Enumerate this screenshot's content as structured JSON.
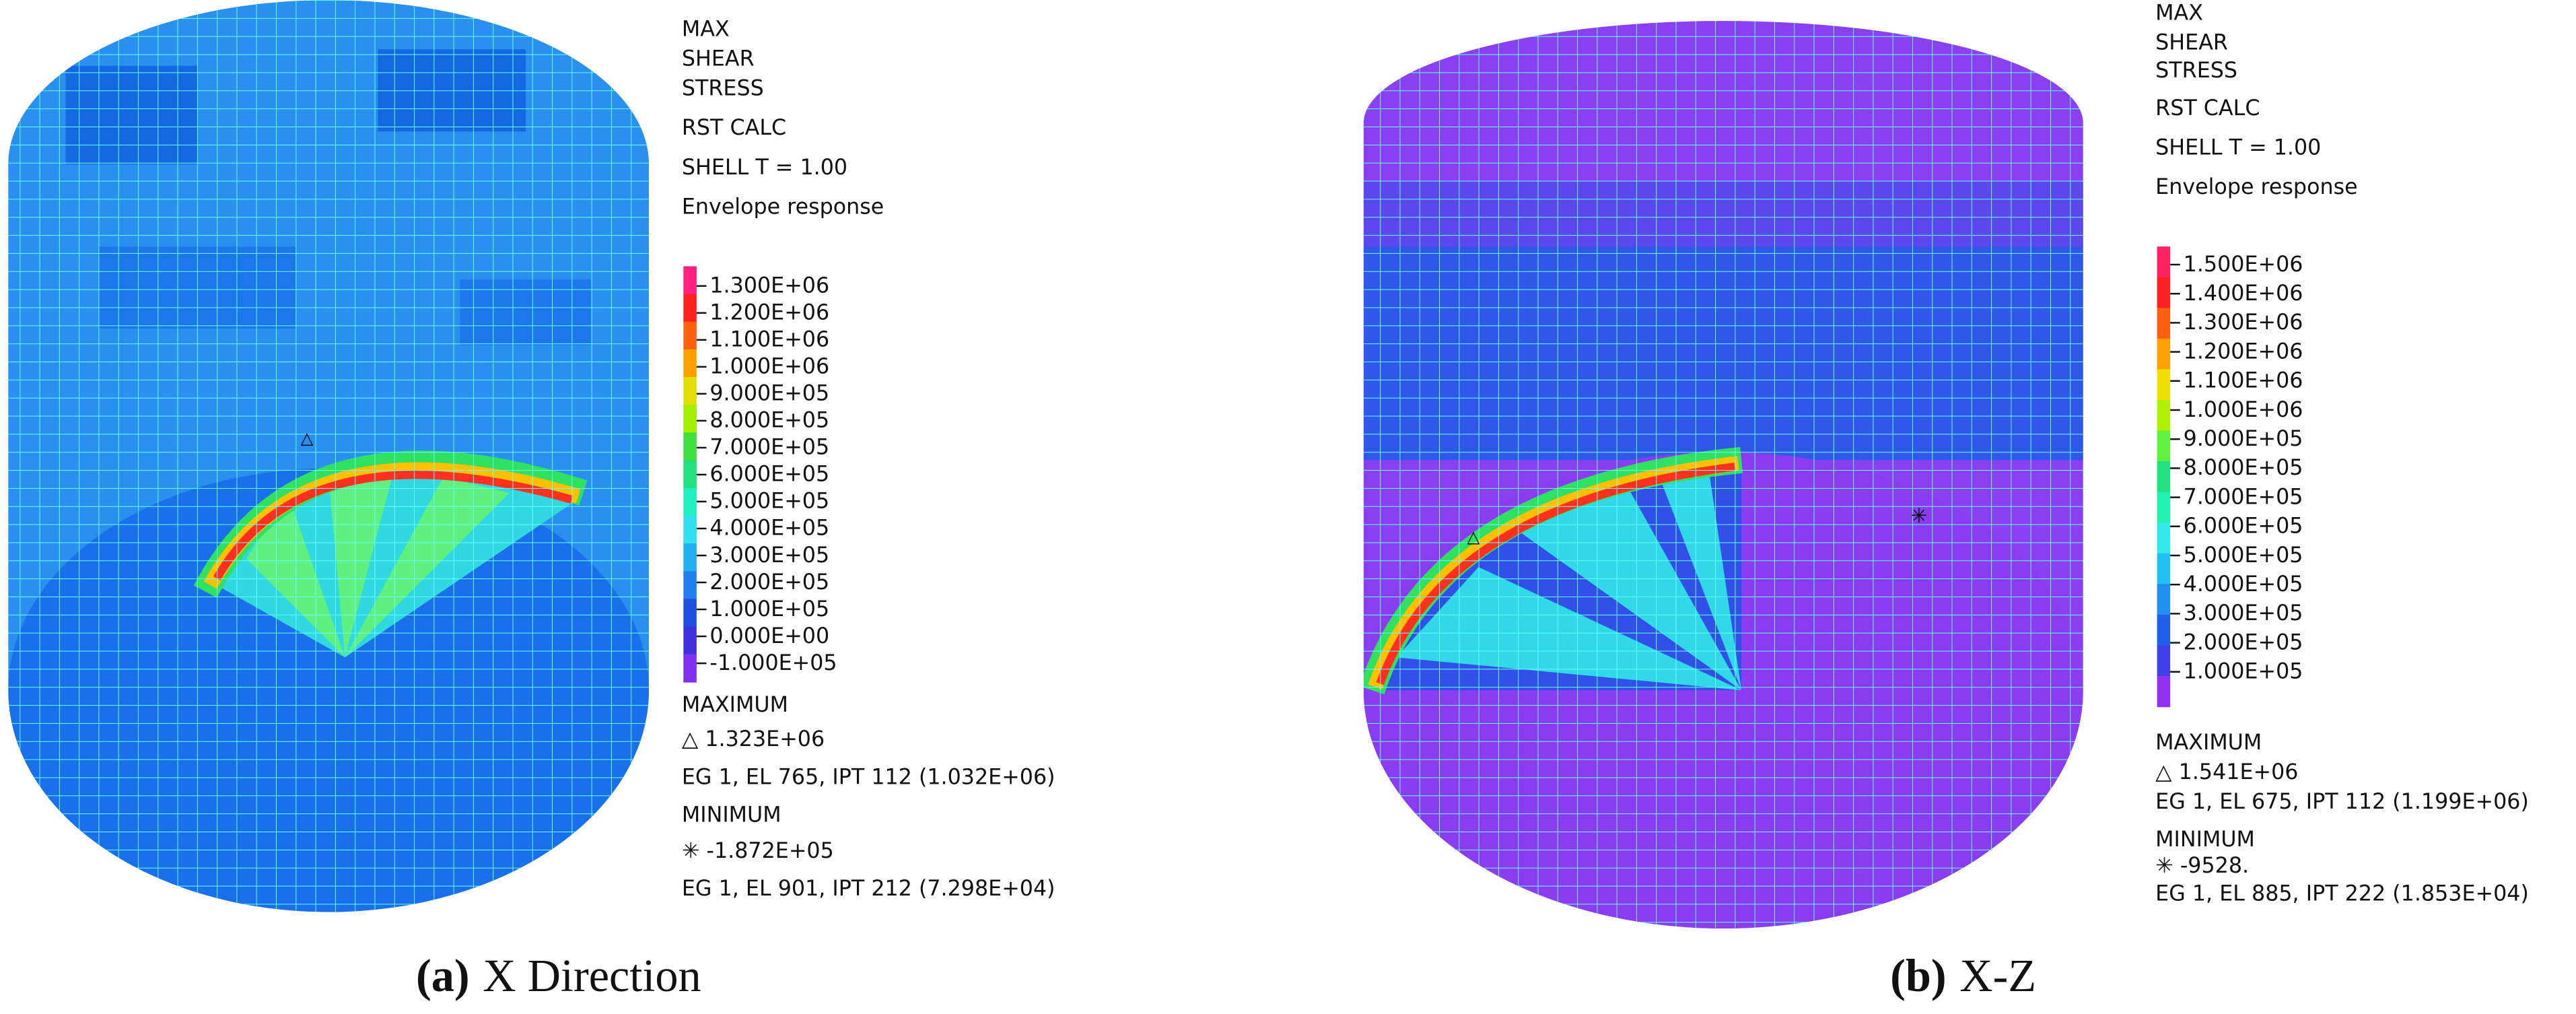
{
  "panels": [
    {
      "legend_title": [
        "MAX",
        "SHEAR",
        "STRESS",
        "RST CALC",
        "SHELL T = 1.00",
        "Envelope response"
      ],
      "levels": [
        "1.300E+06",
        "1.200E+06",
        "1.100E+06",
        "1.000E+06",
        "9.000E+05",
        "8.000E+05",
        "7.000E+05",
        "6.000E+05",
        "5.000E+05",
        "4.000E+05",
        "3.000E+05",
        "2.000E+05",
        "1.000E+05",
        "0.000E+00",
        "-1.000E+05"
      ],
      "colors": [
        "#ff2080",
        "#ff2020",
        "#ff6010",
        "#ffa000",
        "#e0e000",
        "#a0f000",
        "#40e040",
        "#20e080",
        "#20f0c0",
        "#30e0f0",
        "#20b0f0",
        "#2080f0",
        "#2050e0",
        "#4030e0",
        "#8030f0"
      ],
      "maximum_heading": "MAXIMUM",
      "maximum_value": "△  1.323E+06",
      "maximum_location": "EG 1, EL 765, IPT 112 (1.032E+06)",
      "minimum_heading": "MINIMUM",
      "minimum_value": "✳  -1.872E+05",
      "minimum_location": "EG 1, EL 901, IPT 212 (7.298E+04)",
      "caption_label": "(a)",
      "caption_text": "X Direction"
    },
    {
      "legend_title": [
        "MAX",
        "SHEAR",
        "STRESS",
        "RST CALC",
        "SHELL T = 1.00",
        "Envelope response"
      ],
      "levels": [
        "1.500E+06",
        "1.400E+06",
        "1.300E+06",
        "1.200E+06",
        "1.100E+06",
        "1.000E+06",
        "9.000E+05",
        "8.000E+05",
        "7.000E+05",
        "6.000E+05",
        "5.000E+05",
        "4.000E+05",
        "3.000E+05",
        "2.000E+05",
        "1.000E+05"
      ],
      "colors": [
        "#ff2060",
        "#ff2020",
        "#ff6010",
        "#ffa000",
        "#f0e000",
        "#b0f000",
        "#60f040",
        "#20e080",
        "#20f0b0",
        "#30e8e8",
        "#20c0f0",
        "#2090f0",
        "#2060e8",
        "#4040e8",
        "#9030f0"
      ],
      "maximum_heading": "MAXIMUM",
      "maximum_value": "△  1.541E+06",
      "maximum_location": "EG 1, EL 675, IPT 112 (1.199E+06)",
      "minimum_heading": "MINIMUM",
      "minimum_value": "✳  -9528.",
      "minimum_location": "EG 1, EL 885, IPT 222 (1.853E+04)",
      "caption_label": "(b)",
      "caption_text": "X-Z"
    }
  ]
}
